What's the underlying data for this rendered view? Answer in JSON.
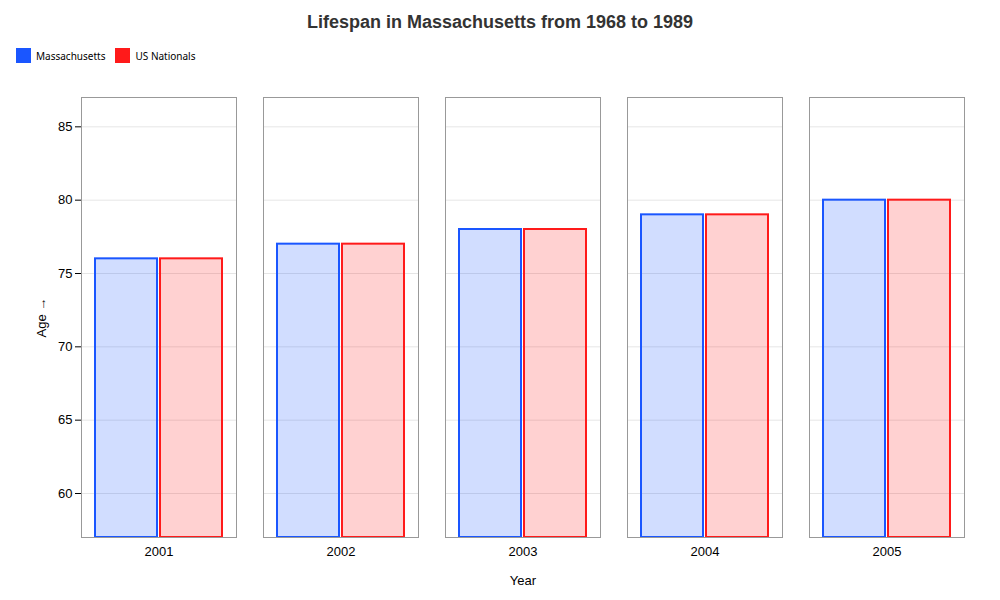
{
  "chart_data": {
    "type": "bar",
    "title": "Lifespan in Massachusetts from 1968 to 1989",
    "xlabel": "Year",
    "ylabel": "Age",
    "categories": [
      "2001",
      "2002",
      "2003",
      "2004",
      "2005"
    ],
    "series": [
      {
        "name": "Massachusetts",
        "color": "#1a56ff",
        "values": [
          76,
          77,
          78,
          79,
          80
        ]
      },
      {
        "name": "US Nationals",
        "color": "#ff1a1a",
        "values": [
          76,
          77,
          78,
          79,
          80
        ]
      }
    ],
    "ylim": [
      57,
      87
    ],
    "yticks": [
      60,
      65,
      70,
      75,
      80,
      85
    ],
    "grid": true,
    "legend": "top"
  }
}
